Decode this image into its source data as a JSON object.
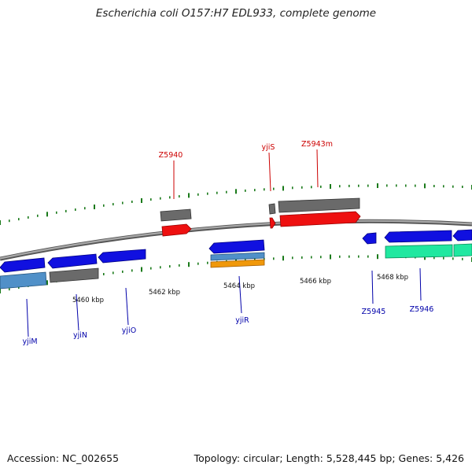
{
  "title": "Escherichia coli O157:H7 EDL933, complete genome",
  "footer": {
    "accession": "Accession: NC_002655",
    "summary": "Topology: circular; Length: 5,528,445 bp; Genes: 5,426"
  },
  "colors": {
    "backbone": "#888888",
    "cds": "#1010e0",
    "gene": "#6a6a6a",
    "rna": "#ee1010",
    "misc_feature": "#5090c8",
    "repeat": "#f0980a",
    "mobile": "#20e8a0",
    "tick": "#1a7a1a",
    "top_label": "#cc0000",
    "bottom_label": "#0000aa"
  },
  "ticks": [
    "5460 kbp",
    "5462 kbp",
    "5464 kbp",
    "5466 kbp",
    "5468 kbp"
  ],
  "labels_top": [
    "Z5940",
    "yjiS",
    "Z5943m"
  ],
  "labels_bottom": [
    "yjiM",
    "yjiN",
    "yjiO",
    "yjiR",
    "Z5945",
    "Z5946"
  ]
}
